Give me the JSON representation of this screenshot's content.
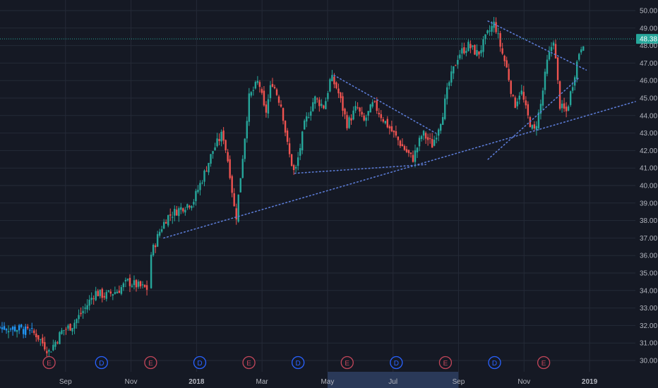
{
  "chart_data": {
    "type": "candlestick",
    "title": "",
    "xlabel": "",
    "ylabel": "",
    "ylim": [
      29.7,
      50.3
    ],
    "y_ticks": [
      "30.00",
      "31.00",
      "32.00",
      "33.00",
      "34.00",
      "35.00",
      "36.00",
      "37.00",
      "38.00",
      "39.00",
      "40.00",
      "41.00",
      "42.00",
      "43.00",
      "44.00",
      "45.00",
      "46.00",
      "47.00",
      "48.00",
      "49.00",
      "50.00"
    ],
    "x_ticks": [
      "Sep",
      "Nov",
      "2018",
      "Mar",
      "May",
      "Jul",
      "Sep",
      "Nov",
      "2019"
    ],
    "x_tick_positions_months": [
      2,
      4,
      6,
      8,
      10,
      12,
      14,
      16,
      18
    ],
    "x_range_months": [
      0,
      19.4
    ],
    "highlighted_x_range_months": [
      10,
      14
    ],
    "last_price": "48.38",
    "last_price_value": 48.38,
    "grid": true,
    "events": [
      {
        "label": "E",
        "kind": "earnings",
        "month": 1.5
      },
      {
        "label": "D",
        "kind": "dividend",
        "month": 3.1
      },
      {
        "label": "E",
        "kind": "earnings",
        "month": 4.6
      },
      {
        "label": "D",
        "kind": "dividend",
        "month": 6.1
      },
      {
        "label": "E",
        "kind": "earnings",
        "month": 7.6
      },
      {
        "label": "D",
        "kind": "dividend",
        "month": 9.1
      },
      {
        "label": "E",
        "kind": "earnings",
        "month": 10.6
      },
      {
        "label": "D",
        "kind": "dividend",
        "month": 12.1
      },
      {
        "label": "E",
        "kind": "earnings",
        "month": 13.6
      },
      {
        "label": "D",
        "kind": "dividend",
        "month": 15.1
      },
      {
        "label": "E",
        "kind": "earnings",
        "month": 16.6
      }
    ],
    "trendlines": [
      {
        "name": "long-support",
        "points": [
          [
            5.0,
            37.0
          ],
          [
            19.4,
            44.8
          ]
        ]
      },
      {
        "name": "mid-support",
        "points": [
          [
            9.0,
            40.7
          ],
          [
            13.0,
            41.2
          ]
        ]
      },
      {
        "name": "may-downtrend",
        "points": [
          [
            10.2,
            46.3
          ],
          [
            13.3,
            43.0
          ]
        ]
      },
      {
        "name": "sep-downtrend",
        "points": [
          [
            14.9,
            49.4
          ],
          [
            17.9,
            46.6
          ]
        ]
      },
      {
        "name": "nov-uptrend",
        "points": [
          [
            14.9,
            41.5
          ],
          [
            17.7,
            46.2
          ]
        ]
      }
    ],
    "price_path": [
      [
        0.0,
        31.9
      ],
      [
        0.6,
        31.8
      ],
      [
        1.1,
        31.5
      ],
      [
        1.5,
        30.5
      ],
      [
        1.9,
        31.7
      ],
      [
        2.2,
        32.0
      ],
      [
        2.6,
        33.0
      ],
      [
        2.9,
        33.9
      ],
      [
        3.2,
        33.7
      ],
      [
        3.6,
        34.0
      ],
      [
        3.9,
        34.5
      ],
      [
        4.3,
        34.2
      ],
      [
        4.5,
        34.1
      ],
      [
        4.6,
        36.0
      ],
      [
        4.9,
        37.5
      ],
      [
        5.1,
        38.2
      ],
      [
        5.6,
        38.8
      ],
      [
        5.9,
        39.1
      ],
      [
        6.2,
        40.5
      ],
      [
        6.5,
        42.0
      ],
      [
        6.8,
        43.0
      ],
      [
        7.0,
        41.0
      ],
      [
        7.2,
        38.0
      ],
      [
        7.4,
        41.5
      ],
      [
        7.6,
        45.0
      ],
      [
        7.9,
        46.0
      ],
      [
        8.1,
        44.0
      ],
      [
        8.3,
        46.0
      ],
      [
        8.6,
        44.5
      ],
      [
        8.8,
        42.0
      ],
      [
        9.0,
        40.6
      ],
      [
        9.3,
        43.5
      ],
      [
        9.6,
        45.0
      ],
      [
        9.9,
        44.5
      ],
      [
        10.1,
        46.2
      ],
      [
        10.3,
        45.5
      ],
      [
        10.6,
        43.5
      ],
      [
        10.9,
        44.5
      ],
      [
        11.1,
        43.6
      ],
      [
        11.4,
        44.7
      ],
      [
        11.7,
        43.8
      ],
      [
        12.0,
        43.0
      ],
      [
        12.3,
        42.2
      ],
      [
        12.6,
        41.5
      ],
      [
        12.9,
        43.0
      ],
      [
        13.2,
        42.3
      ],
      [
        13.5,
        44.0
      ],
      [
        13.7,
        45.8
      ],
      [
        14.0,
        47.5
      ],
      [
        14.3,
        48.0
      ],
      [
        14.6,
        47.5
      ],
      [
        14.9,
        48.7
      ],
      [
        15.1,
        49.3
      ],
      [
        15.3,
        47.8
      ],
      [
        15.5,
        46.5
      ],
      [
        15.7,
        44.5
      ],
      [
        15.9,
        45.5
      ],
      [
        16.1,
        44.0
      ],
      [
        16.3,
        43.0
      ],
      [
        16.5,
        44.5
      ],
      [
        16.7,
        47.0
      ],
      [
        16.9,
        48.4
      ],
      [
        17.1,
        44.5
      ],
      [
        17.3,
        44.2
      ],
      [
        17.5,
        46.0
      ],
      [
        17.7,
        47.8
      ],
      [
        17.85,
        48.38
      ]
    ],
    "gaps": [
      [
        4.5,
        4.6
      ]
    ],
    "candle_month_step": 0.065,
    "colors": {
      "background": "#151924",
      "grid": "#252a37",
      "axis_text": "#b2b5be",
      "up": "#26a69a",
      "down": "#ef5350",
      "early_up": "#2196f3",
      "trendline": "#5b7bd5",
      "last_price_line": "#26a69a",
      "last_price_label_bg": "#26a69a",
      "highlight_bg": "#2a3958",
      "earnings": "#c2465a",
      "dividend": "#2962ff"
    }
  }
}
